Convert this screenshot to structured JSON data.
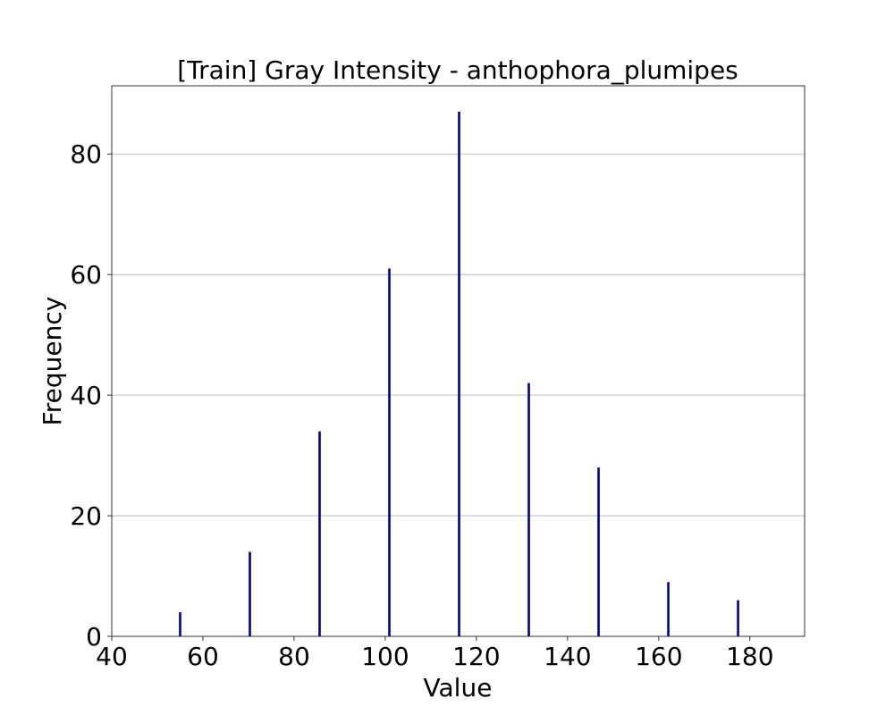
{
  "chart_data": {
    "type": "bar",
    "title": "[Train] Gray Intensity - anthophora_plumipes",
    "xlabel": "Value",
    "ylabel": "Frequency",
    "x": [
      55,
      70.3,
      85.6,
      100.9,
      116.2,
      131.5,
      146.8,
      162.1,
      177.4
    ],
    "values": [
      4,
      14,
      34,
      61,
      87,
      42,
      28,
      9,
      6
    ],
    "xlim": [
      40,
      192
    ],
    "ylim": [
      0,
      91.3
    ],
    "xticks": [
      40,
      60,
      80,
      100,
      120,
      140,
      160,
      180
    ],
    "yticks": [
      0,
      20,
      40,
      60,
      80
    ],
    "grid": "y-axis",
    "bar_color": "#00008b"
  }
}
